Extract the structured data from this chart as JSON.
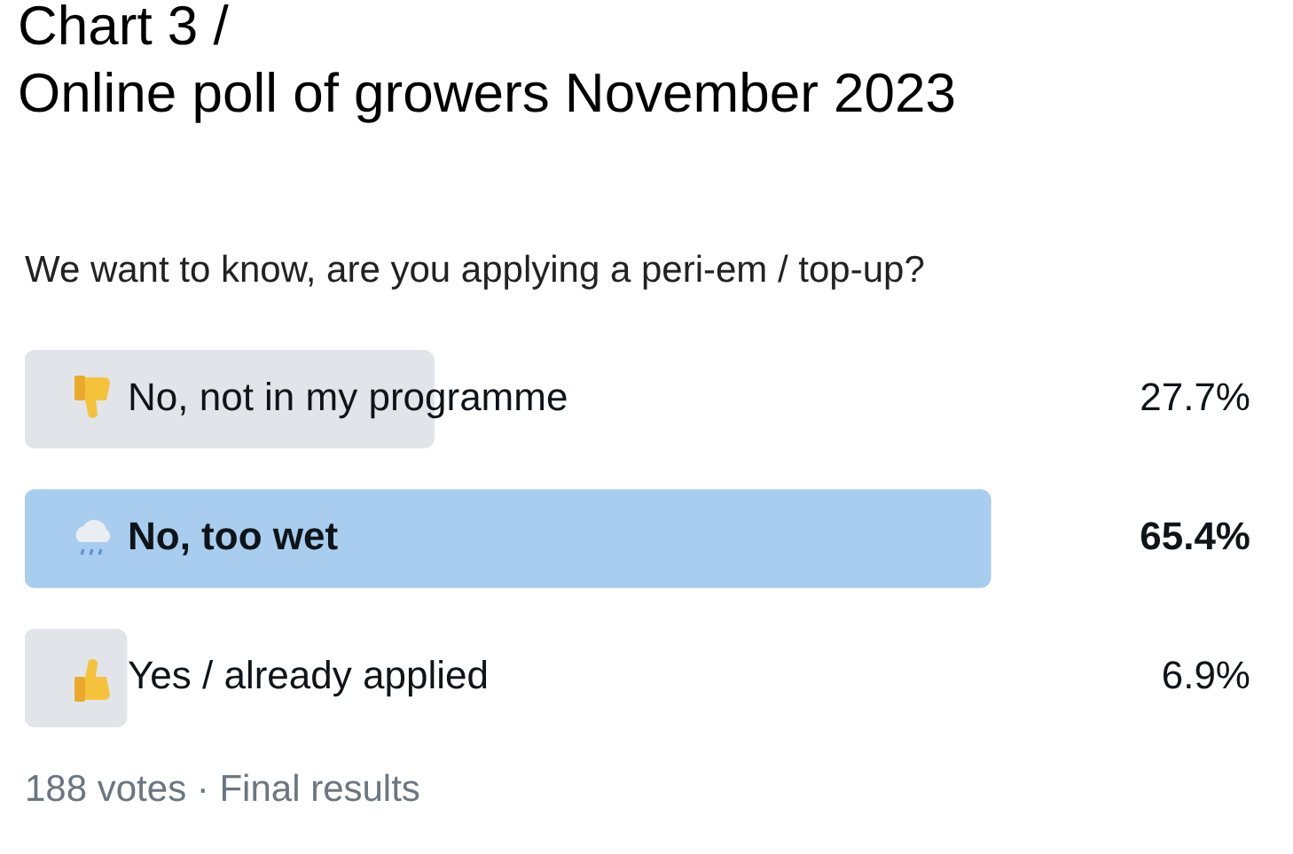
{
  "chart_data": {
    "type": "bar",
    "orientation": "horizontal",
    "title": "Chart 3 /\nOnline poll of growers November 2023",
    "subtitle": "We want to know, are you applying a peri-em / top-up?",
    "categories": [
      "No, not in my programme",
      "No, too wet",
      "Yes / already applied"
    ],
    "values": [
      27.7,
      65.4,
      6.9
    ],
    "value_labels": [
      "27.7%",
      "65.4%",
      "6.9%"
    ],
    "colors": [
      "#e1e5ea",
      "#a9cdee",
      "#e1e5ea"
    ],
    "annotations": [
      "188 votes · Final results"
    ]
  }
}
